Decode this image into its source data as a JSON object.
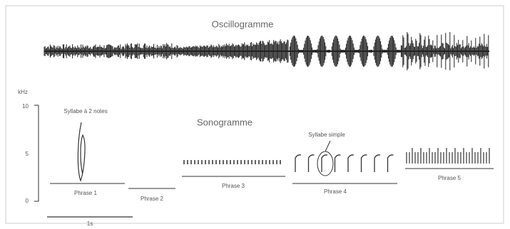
{
  "oscillogram": {
    "title": "Oscillogramme"
  },
  "sonogram": {
    "title": "Sonogramme",
    "axis_unit": "kHz",
    "axis_ticks": [
      "10",
      "5",
      "0"
    ],
    "annotations": [
      "Syllabe à 2 notes",
      "Syllabe simple"
    ],
    "phrases": [
      "Phrase 1",
      "Phrase 2",
      "Phrase 3",
      "Phrase 4",
      "Phrase 5"
    ],
    "scale_bar": "1s"
  }
}
